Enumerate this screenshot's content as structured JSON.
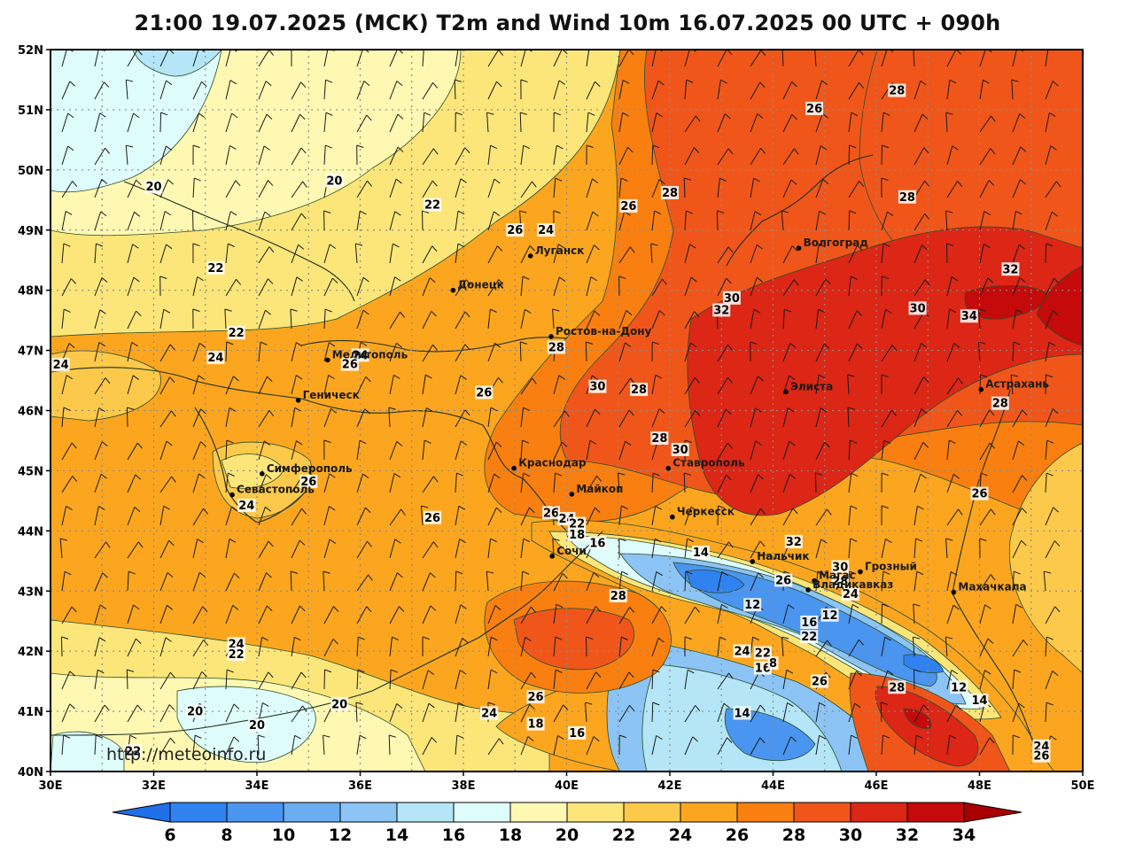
{
  "title": "21:00 19.07.2025 (МСК) T2m and Wind 10m 16.07.2025 00 UTC + 090h",
  "watermark": "http://meteoinfo.ru",
  "axes": {
    "lon": {
      "min": 30,
      "max": 50,
      "ticks": [
        "30E",
        "32E",
        "34E",
        "36E",
        "38E",
        "40E",
        "42E",
        "44E",
        "46E",
        "48E",
        "50E"
      ]
    },
    "lat": {
      "min": 40,
      "max": 52,
      "ticks": [
        "40N",
        "41N",
        "42N",
        "43N",
        "44N",
        "45N",
        "46N",
        "47N",
        "48N",
        "49N",
        "50N",
        "51N",
        "52N"
      ]
    },
    "grid": true
  },
  "colorbar": {
    "labels": [
      "6",
      "8",
      "10",
      "12",
      "14",
      "16",
      "18",
      "20",
      "22",
      "24",
      "26",
      "28",
      "30",
      "32",
      "34"
    ],
    "colors": [
      "#1f6fe8",
      "#2f82ef",
      "#4a95f0",
      "#6aaef2",
      "#8cc4f5",
      "#b4e6f7",
      "#dffcfc",
      "#fff8b3",
      "#fce67a",
      "#fdc94a",
      "#fca61f",
      "#f98010",
      "#f0561a",
      "#dc2616",
      "#c40a0a",
      "#a80000"
    ]
  },
  "cities": [
    {
      "name": "Луганск",
      "lon": 39.3,
      "lat": 48.57
    },
    {
      "name": "Донецк",
      "lon": 37.8,
      "lat": 48.0
    },
    {
      "name": "Волгоград",
      "lon": 44.5,
      "lat": 48.7
    },
    {
      "name": "Ростов-на-Дону",
      "lon": 39.7,
      "lat": 47.23
    },
    {
      "name": "Мелитополь",
      "lon": 35.37,
      "lat": 46.84
    },
    {
      "name": "Геническ",
      "lon": 34.8,
      "lat": 46.17
    },
    {
      "name": "Элиста",
      "lon": 44.25,
      "lat": 46.31
    },
    {
      "name": "Астрахань",
      "lon": 48.03,
      "lat": 46.35
    },
    {
      "name": "Краснодар",
      "lon": 38.98,
      "lat": 45.04
    },
    {
      "name": "Ставрополь",
      "lon": 41.97,
      "lat": 45.04
    },
    {
      "name": "Симферополь",
      "lon": 34.1,
      "lat": 44.95
    },
    {
      "name": "Севастополь",
      "lon": 33.52,
      "lat": 44.6
    },
    {
      "name": "Майкоп",
      "lon": 40.1,
      "lat": 44.61
    },
    {
      "name": "Черкесск",
      "lon": 42.05,
      "lat": 44.23
    },
    {
      "name": "Сочи",
      "lon": 39.72,
      "lat": 43.58
    },
    {
      "name": "Нальчик",
      "lon": 43.6,
      "lat": 43.49
    },
    {
      "name": "Магас",
      "lon": 44.8,
      "lat": 43.17
    },
    {
      "name": "Грозный",
      "lon": 45.69,
      "lat": 43.32
    },
    {
      "name": "Владикавказ",
      "lon": 44.68,
      "lat": 43.02
    },
    {
      "name": "Махачкала",
      "lon": 47.5,
      "lat": 42.98
    }
  ],
  "contour_labels": [
    {
      "t": "20",
      "lon": 32.0,
      "lat": 49.7
    },
    {
      "t": "20",
      "lon": 35.5,
      "lat": 49.8
    },
    {
      "t": "22",
      "lon": 37.4,
      "lat": 49.4
    },
    {
      "t": "22",
      "lon": 33.2,
      "lat": 48.35
    },
    {
      "t": "22",
      "lon": 33.6,
      "lat": 47.27
    },
    {
      "t": "24",
      "lon": 33.2,
      "lat": 46.86
    },
    {
      "t": "24",
      "lon": 30.2,
      "lat": 46.74
    },
    {
      "t": "24",
      "lon": 36.0,
      "lat": 46.9
    },
    {
      "t": "26",
      "lon": 35.8,
      "lat": 46.75
    },
    {
      "t": "26",
      "lon": 39.0,
      "lat": 48.98
    },
    {
      "t": "24",
      "lon": 39.6,
      "lat": 48.98
    },
    {
      "t": "26",
      "lon": 41.2,
      "lat": 49.38
    },
    {
      "t": "28",
      "lon": 42.0,
      "lat": 49.6
    },
    {
      "t": "26",
      "lon": 44.8,
      "lat": 51.0
    },
    {
      "t": "28",
      "lon": 46.4,
      "lat": 51.3
    },
    {
      "t": "28",
      "lon": 46.6,
      "lat": 49.53
    },
    {
      "t": "32",
      "lon": 48.6,
      "lat": 48.33
    },
    {
      "t": "30",
      "lon": 46.8,
      "lat": 47.68
    },
    {
      "t": "34",
      "lon": 47.8,
      "lat": 47.55
    },
    {
      "t": "30",
      "lon": 43.2,
      "lat": 47.85
    },
    {
      "t": "32",
      "lon": 43.0,
      "lat": 47.65
    },
    {
      "t": "28",
      "lon": 39.8,
      "lat": 47.03
    },
    {
      "t": "30",
      "lon": 40.6,
      "lat": 46.38
    },
    {
      "t": "28",
      "lon": 41.4,
      "lat": 46.33
    },
    {
      "t": "26",
      "lon": 38.4,
      "lat": 46.28
    },
    {
      "t": "28",
      "lon": 48.4,
      "lat": 46.1
    },
    {
      "t": "28",
      "lon": 41.8,
      "lat": 45.52
    },
    {
      "t": "30",
      "lon": 42.2,
      "lat": 45.33
    },
    {
      "t": "26",
      "lon": 35.0,
      "lat": 44.8
    },
    {
      "t": "24",
      "lon": 33.8,
      "lat": 44.4
    },
    {
      "t": "26",
      "lon": 37.4,
      "lat": 44.2
    },
    {
      "t": "26",
      "lon": 48.0,
      "lat": 44.6
    },
    {
      "t": "26",
      "lon": 39.7,
      "lat": 44.28
    },
    {
      "t": "24",
      "lon": 40.0,
      "lat": 44.18
    },
    {
      "t": "22",
      "lon": 40.2,
      "lat": 44.1
    },
    {
      "t": "18",
      "lon": 40.2,
      "lat": 43.92
    },
    {
      "t": "16",
      "lon": 40.6,
      "lat": 43.78
    },
    {
      "t": "14",
      "lon": 42.6,
      "lat": 43.62
    },
    {
      "t": "32",
      "lon": 44.4,
      "lat": 43.8
    },
    {
      "t": "30",
      "lon": 45.3,
      "lat": 43.38
    },
    {
      "t": "26",
      "lon": 44.2,
      "lat": 43.16
    },
    {
      "t": "28",
      "lon": 45.3,
      "lat": 43.14
    },
    {
      "t": "24",
      "lon": 45.5,
      "lat": 42.93
    },
    {
      "t": "12",
      "lon": 43.6,
      "lat": 42.75
    },
    {
      "t": "12",
      "lon": 45.1,
      "lat": 42.58
    },
    {
      "t": "16",
      "lon": 44.7,
      "lat": 42.46
    },
    {
      "t": "22",
      "lon": 44.7,
      "lat": 42.22
    },
    {
      "t": "28",
      "lon": 41.0,
      "lat": 42.9
    },
    {
      "t": "24",
      "lon": 33.6,
      "lat": 42.1
    },
    {
      "t": "22",
      "lon": 33.6,
      "lat": 41.93
    },
    {
      "t": "24",
      "lon": 43.4,
      "lat": 41.98
    },
    {
      "t": "22",
      "lon": 43.8,
      "lat": 41.95
    },
    {
      "t": "16",
      "lon": 43.8,
      "lat": 41.7
    },
    {
      "t": "8",
      "lon": 44.0,
      "lat": 41.78
    },
    {
      "t": "26",
      "lon": 44.9,
      "lat": 41.48
    },
    {
      "t": "28",
      "lon": 46.4,
      "lat": 41.38
    },
    {
      "t": "12",
      "lon": 47.6,
      "lat": 41.38
    },
    {
      "t": "14",
      "lon": 48.0,
      "lat": 41.16
    },
    {
      "t": "20",
      "lon": 32.8,
      "lat": 40.98
    },
    {
      "t": "20",
      "lon": 35.6,
      "lat": 41.1
    },
    {
      "t": "20",
      "lon": 34.0,
      "lat": 40.75
    },
    {
      "t": "26",
      "lon": 39.4,
      "lat": 41.22
    },
    {
      "t": "24",
      "lon": 38.5,
      "lat": 40.95
    },
    {
      "t": "18",
      "lon": 39.4,
      "lat": 40.77
    },
    {
      "t": "16",
      "lon": 40.2,
      "lat": 40.62
    },
    {
      "t": "14",
      "lon": 43.4,
      "lat": 40.95
    },
    {
      "t": "22",
      "lon": 31.6,
      "lat": 40.32
    },
    {
      "t": "24",
      "lon": 49.2,
      "lat": 40.4
    },
    {
      "t": "26",
      "lon": 49.2,
      "lat": 40.24
    }
  ]
}
